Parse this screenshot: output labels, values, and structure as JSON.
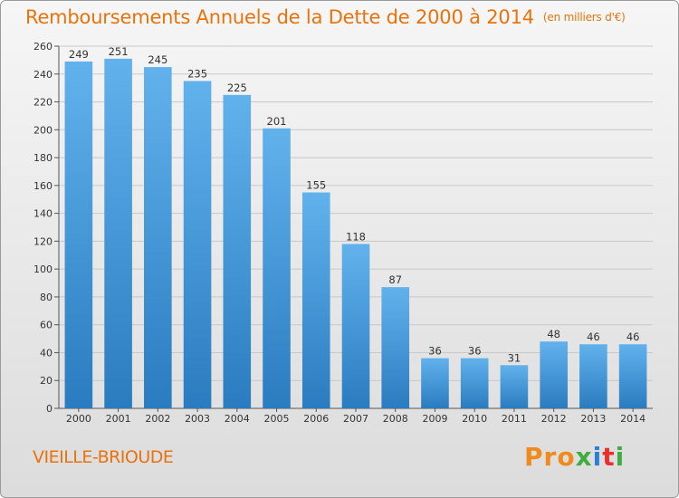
{
  "header": {
    "title": "Remboursements Annuels de la Dette de 2000 à 2014",
    "unit": "(en milliers d'€)"
  },
  "footer": {
    "commune": "VIEILLE-BRIOUDE",
    "logo_text": "Proxiti",
    "logo_colors": [
      "#f08a1c",
      "#f08a1c",
      "#f08a1c",
      "#3fae3f",
      "#2b7fd4",
      "#e8312f",
      "#3fae3f"
    ]
  },
  "colors": {
    "title": "#e8730c",
    "bar_light": "#61b2ec",
    "bar_dark": "#2a7cc0",
    "grid": "#c8c8c8"
  },
  "chart_data": {
    "type": "bar",
    "title": "Remboursements Annuels de la Dette de 2000 à 2014",
    "xlabel": "",
    "ylabel": "",
    "categories": [
      "2000",
      "2001",
      "2002",
      "2003",
      "2004",
      "2005",
      "2006",
      "2007",
      "2008",
      "2009",
      "2010",
      "2011",
      "2012",
      "2013",
      "2014"
    ],
    "values": [
      249,
      251,
      245,
      235,
      225,
      201,
      155,
      118,
      87,
      36,
      36,
      31,
      48,
      46,
      46
    ],
    "ylim": [
      0,
      260
    ],
    "yticks": [
      0,
      20,
      40,
      60,
      80,
      100,
      120,
      140,
      160,
      180,
      200,
      220,
      240,
      260
    ],
    "grid": true,
    "data_labels": true
  }
}
